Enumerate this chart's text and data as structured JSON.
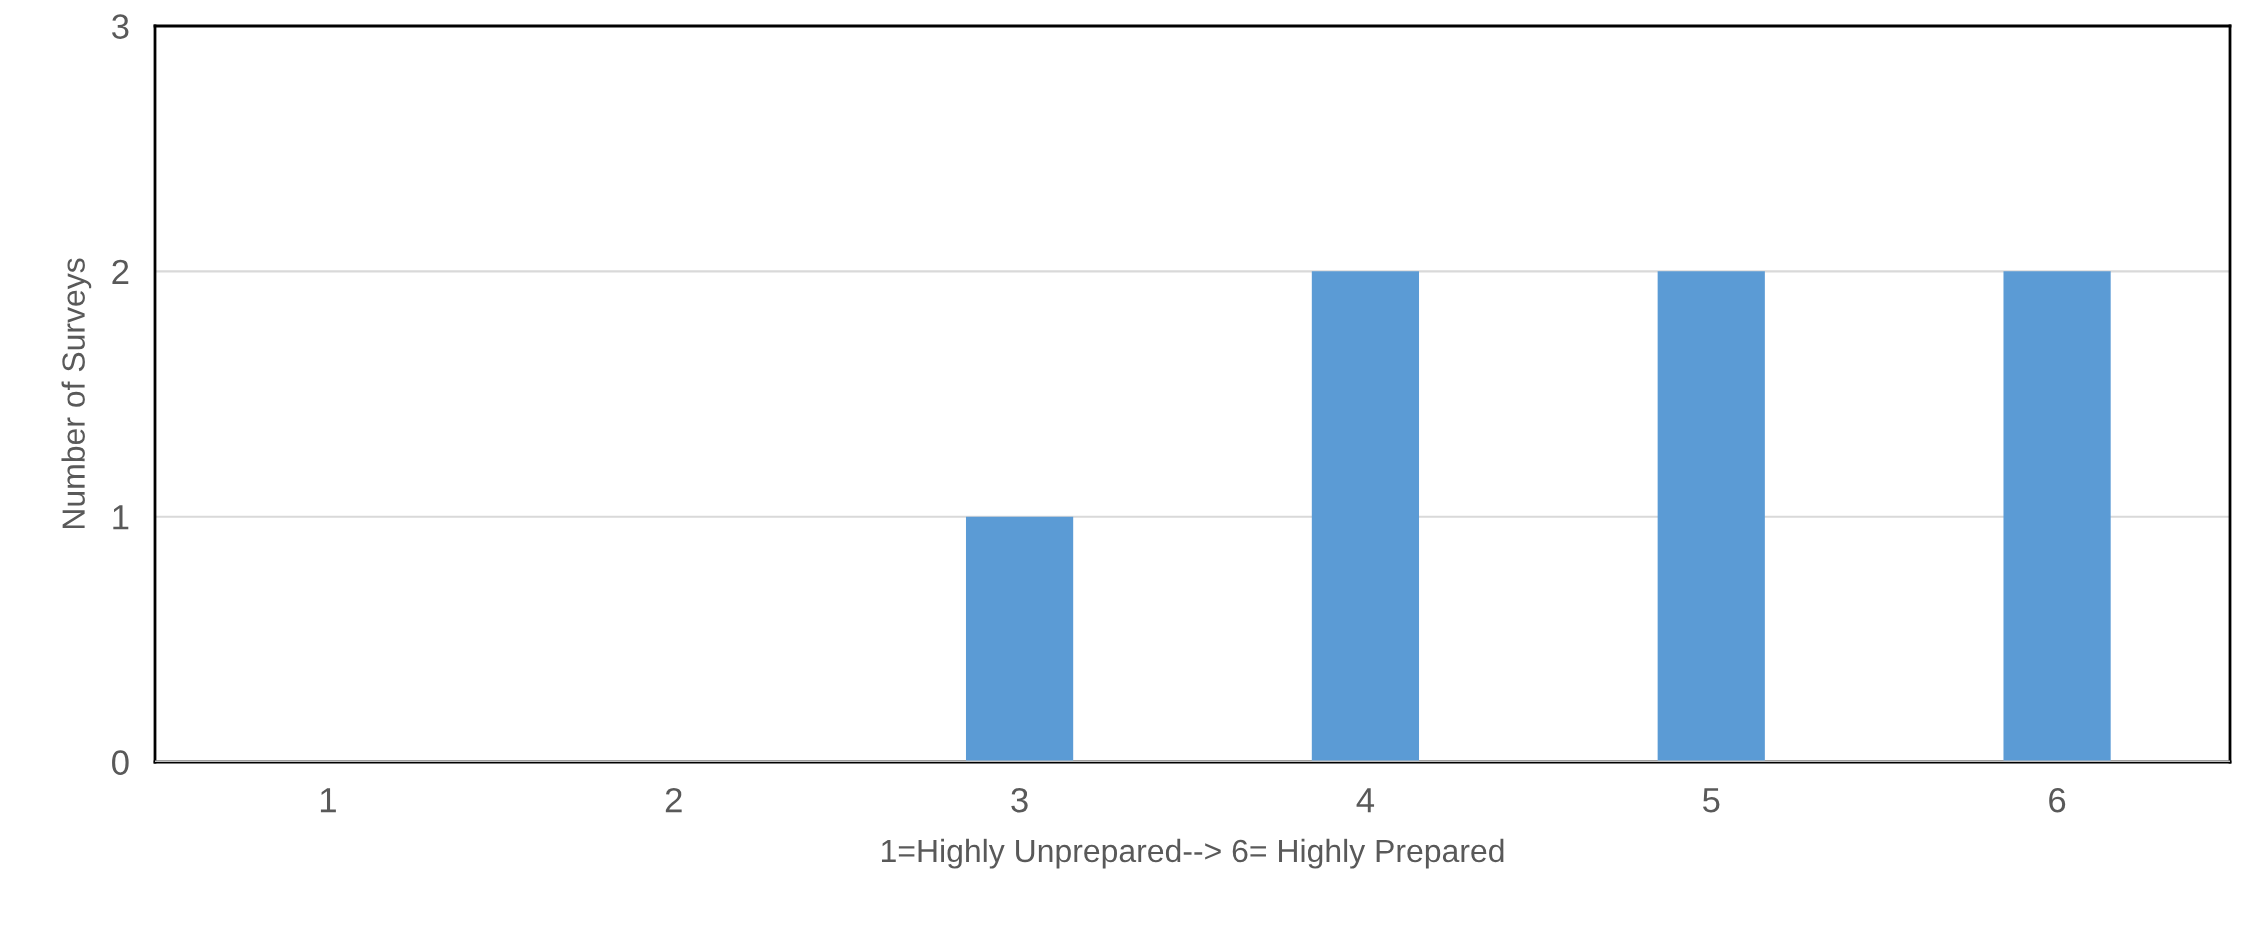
{
  "chart_data": {
    "type": "bar",
    "xlabel": "1=Highly Unprepared--> 6= Highly Prepared",
    "ylabel": "Number of Surveys",
    "categories": [
      "1",
      "2",
      "3",
      "4",
      "5",
      "6"
    ],
    "values": [
      0,
      0,
      1,
      2,
      2,
      2
    ],
    "color": "#5b9bd5",
    "ylim": [
      0,
      3
    ],
    "yticks": [
      0,
      1,
      2,
      3
    ],
    "grid": "y"
  }
}
